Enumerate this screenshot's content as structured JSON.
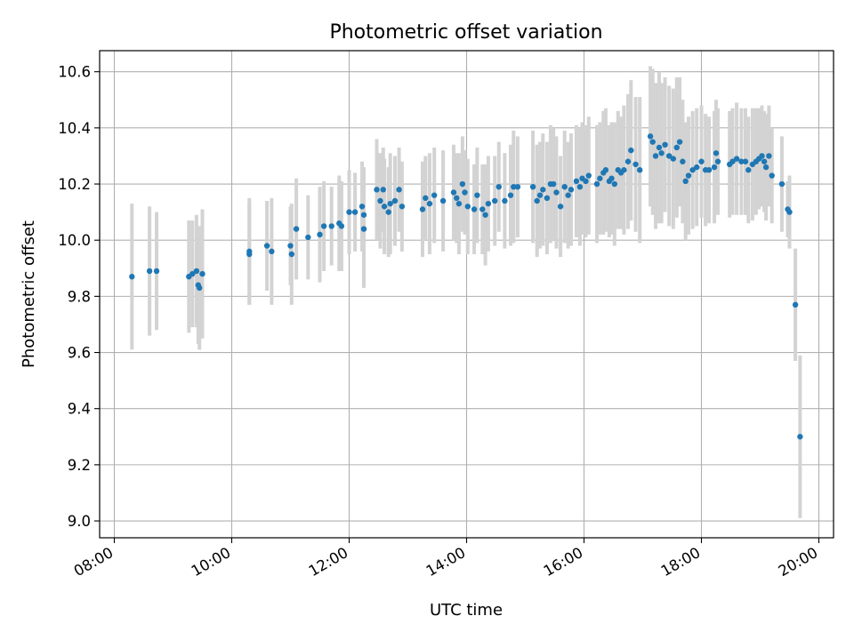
{
  "chart_data": {
    "type": "scatter",
    "title": "Photometric offset variation",
    "xlabel": "UTC time",
    "ylabel": "Photometric offset",
    "x_unit": "hours UTC",
    "xlim": [
      7.75,
      20.25
    ],
    "ylim": [
      8.94,
      10.675
    ],
    "xticks": [
      8,
      10,
      12,
      14,
      16,
      18,
      20
    ],
    "xtick_labels": [
      "08:00",
      "10:00",
      "12:00",
      "14:00",
      "16:00",
      "18:00",
      "20:00"
    ],
    "yticks": [
      9.0,
      9.2,
      9.4,
      9.6,
      9.8,
      10.0,
      10.2,
      10.4,
      10.6
    ],
    "ytick_labels": [
      "9.0",
      "9.2",
      "9.4",
      "9.6",
      "9.8",
      "10.0",
      "10.2",
      "10.4",
      "10.6"
    ],
    "grid": true,
    "colors": {
      "points": "#1f77b4",
      "errorbars": "#d3d3d3"
    },
    "series": [
      {
        "x": [
          8.3,
          8.6,
          8.72,
          9.27,
          9.33,
          9.4,
          9.43,
          9.45,
          9.5,
          10.3,
          10.3,
          10.6,
          10.68,
          11.0,
          11.02,
          11.1,
          11.3,
          11.5,
          11.57,
          11.7,
          11.83,
          11.87,
          12.0,
          12.1,
          12.22,
          12.25,
          12.25,
          12.47,
          12.53,
          12.58,
          12.6,
          12.67,
          12.7,
          12.78,
          12.85,
          12.9,
          13.25,
          13.3,
          13.37,
          13.45,
          13.6,
          13.78,
          13.83,
          13.87,
          13.93,
          13.97,
          14.02,
          14.13,
          14.18,
          14.27,
          14.32,
          14.37,
          14.48,
          14.55,
          14.65,
          14.75,
          14.8,
          14.87,
          15.13,
          15.2,
          15.25,
          15.3,
          15.37,
          15.43,
          15.48,
          15.53,
          15.6,
          15.67,
          15.73,
          15.78,
          15.87,
          15.93,
          15.97,
          16.03,
          16.08,
          16.22,
          16.27,
          16.33,
          16.37,
          16.43,
          16.47,
          16.52,
          16.58,
          16.63,
          16.68,
          16.75,
          16.8,
          16.88,
          16.95,
          17.13,
          17.17,
          17.22,
          17.28,
          17.32,
          17.38,
          17.45,
          17.52,
          17.58,
          17.63,
          17.68,
          17.73,
          17.78,
          17.85,
          17.92,
          18.0,
          18.07,
          18.13,
          18.22,
          18.25,
          18.28,
          18.48,
          18.53,
          18.6,
          18.68,
          18.75,
          18.8,
          18.87,
          18.93,
          18.98,
          19.03,
          19.07,
          19.1,
          19.15,
          19.2,
          19.37,
          19.47,
          19.5,
          19.6,
          19.68
        ],
        "y": [
          9.87,
          9.89,
          9.89,
          9.87,
          9.88,
          9.89,
          9.84,
          9.83,
          9.88,
          9.96,
          9.95,
          9.98,
          9.96,
          9.98,
          9.95,
          10.04,
          10.01,
          10.02,
          10.05,
          10.05,
          10.06,
          10.05,
          10.1,
          10.1,
          10.12,
          10.04,
          10.09,
          10.18,
          10.14,
          10.18,
          10.12,
          10.1,
          10.13,
          10.14,
          10.18,
          10.12,
          10.11,
          10.15,
          10.13,
          10.16,
          10.14,
          10.17,
          10.15,
          10.13,
          10.2,
          10.17,
          10.12,
          10.11,
          10.16,
          10.11,
          10.09,
          10.13,
          10.14,
          10.19,
          10.14,
          10.16,
          10.19,
          10.19,
          10.19,
          10.14,
          10.16,
          10.18,
          10.15,
          10.2,
          10.2,
          10.17,
          10.12,
          10.19,
          10.16,
          10.18,
          10.21,
          10.19,
          10.22,
          10.21,
          10.23,
          10.2,
          10.22,
          10.24,
          10.25,
          10.21,
          10.22,
          10.2,
          10.25,
          10.24,
          10.25,
          10.28,
          10.32,
          10.27,
          10.25,
          10.37,
          10.35,
          10.3,
          10.33,
          10.31,
          10.34,
          10.3,
          10.29,
          10.33,
          10.35,
          10.28,
          10.21,
          10.23,
          10.25,
          10.26,
          10.28,
          10.25,
          10.25,
          10.26,
          10.31,
          10.28,
          10.27,
          10.28,
          10.29,
          10.28,
          10.28,
          10.25,
          10.27,
          10.28,
          10.29,
          10.3,
          10.28,
          10.26,
          10.3,
          10.23,
          10.2,
          10.11,
          10.1,
          9.77,
          9.3
        ],
        "err": [
          0.26,
          0.23,
          0.21,
          0.2,
          0.19,
          0.2,
          0.21,
          0.22,
          0.23,
          0.19,
          0.18,
          0.16,
          0.19,
          0.14,
          0.18,
          0.18,
          0.15,
          0.17,
          0.16,
          0.14,
          0.17,
          0.16,
          0.15,
          0.14,
          0.16,
          0.21,
          0.17,
          0.18,
          0.17,
          0.15,
          0.17,
          0.16,
          0.18,
          0.16,
          0.15,
          0.16,
          0.17,
          0.15,
          0.18,
          0.17,
          0.18,
          0.17,
          0.16,
          0.18,
          0.17,
          0.15,
          0.17,
          0.16,
          0.17,
          0.16,
          0.18,
          0.17,
          0.16,
          0.16,
          0.17,
          0.18,
          0.2,
          0.18,
          0.2,
          0.2,
          0.19,
          0.2,
          0.2,
          0.21,
          0.2,
          0.2,
          0.18,
          0.2,
          0.19,
          0.2,
          0.2,
          0.21,
          0.2,
          0.2,
          0.21,
          0.21,
          0.2,
          0.22,
          0.22,
          0.2,
          0.2,
          0.22,
          0.21,
          0.2,
          0.23,
          0.24,
          0.25,
          0.24,
          0.26,
          0.25,
          0.26,
          0.26,
          0.27,
          0.25,
          0.24,
          0.25,
          0.25,
          0.25,
          0.23,
          0.22,
          0.21,
          0.21,
          0.21,
          0.21,
          0.2,
          0.2,
          0.19,
          0.2,
          0.19,
          0.19,
          0.19,
          0.19,
          0.2,
          0.19,
          0.19,
          0.19,
          0.2,
          0.19,
          0.18,
          0.18,
          0.18,
          0.19,
          0.18,
          0.17,
          0.17,
          0.1,
          0.13,
          0.2,
          0.29
        ]
      }
    ]
  }
}
